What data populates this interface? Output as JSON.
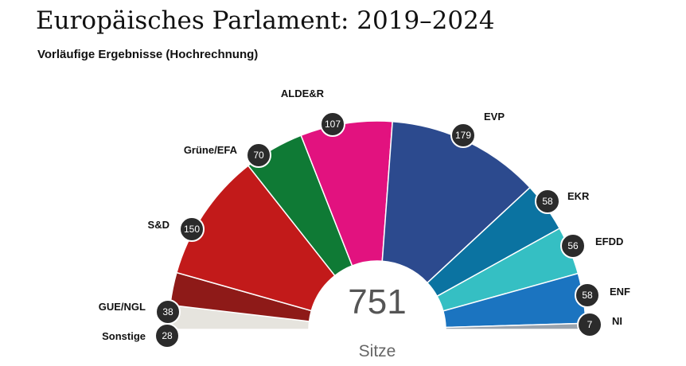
{
  "title": "Europäisches Parlament: 2019–2024",
  "subtitle": "Vorläufige Ergebnisse (Hochrechnung)",
  "chart_data": {
    "type": "pie",
    "style": "parliament-half-donut",
    "total": "751",
    "total_label": "Sitze",
    "series": [
      {
        "name": "Sonstige",
        "value": 28,
        "color": "#e6e4de"
      },
      {
        "name": "GUE/NGL",
        "value": 38,
        "color": "#8e1a18"
      },
      {
        "name": "S&D",
        "value": 150,
        "color": "#c21a1a"
      },
      {
        "name": "Grüne/EFA",
        "value": 70,
        "color": "#0f7a35"
      },
      {
        "name": "ALDE&R",
        "value": 107,
        "color": "#e2127f"
      },
      {
        "name": "EVP",
        "value": 179,
        "color": "#2c4a8e"
      },
      {
        "name": "EKR",
        "value": 58,
        "color": "#0b73a1"
      },
      {
        "name": "EFDD",
        "value": 56,
        "color": "#35bfc3"
      },
      {
        "name": "ENF",
        "value": 58,
        "color": "#1b74c0"
      },
      {
        "name": "NI",
        "value": 7,
        "color": "#9aa3ad"
      }
    ]
  }
}
